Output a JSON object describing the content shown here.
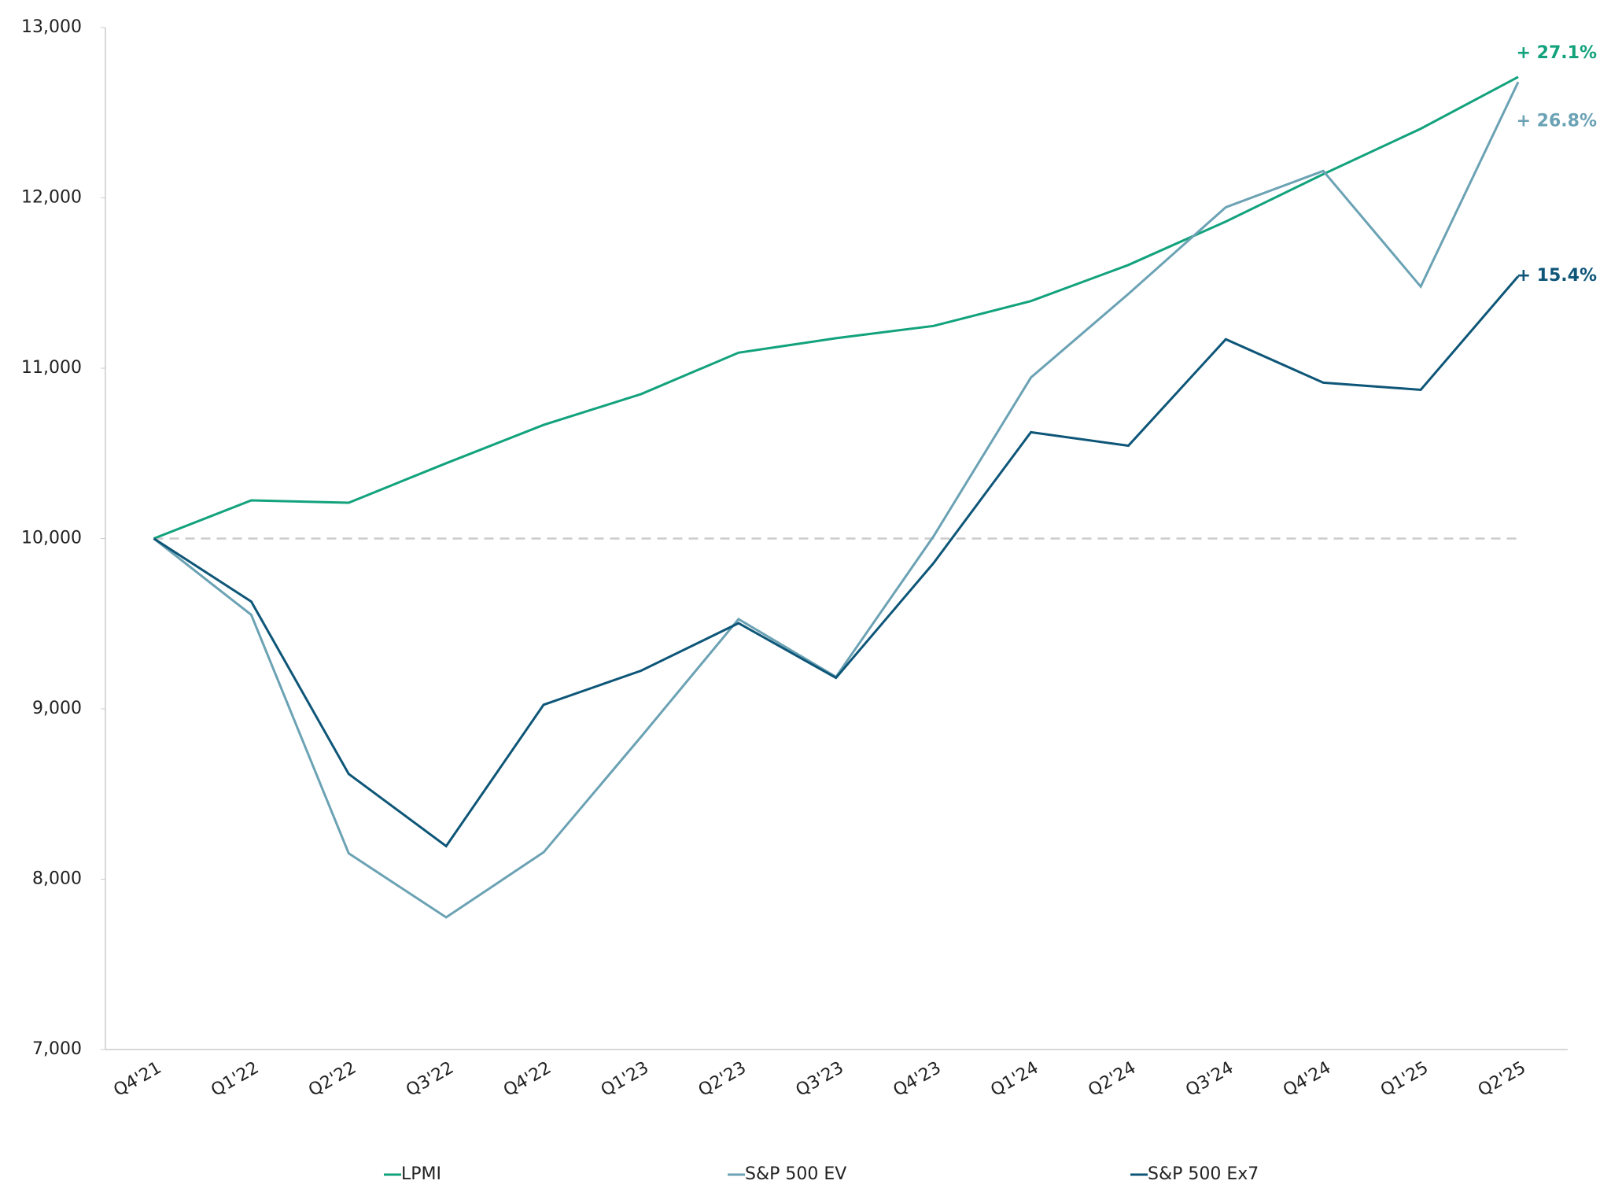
{
  "chart_data": {
    "type": "line",
    "categories": [
      "Q4'21",
      "Q1'22",
      "Q2'22",
      "Q3'22",
      "Q4'22",
      "Q1'23",
      "Q2'23",
      "Q3'23",
      "Q4'23",
      "Q1'24",
      "Q2'24",
      "Q3'24",
      "Q4'24",
      "Q1'25",
      "Q2'25"
    ],
    "series": [
      {
        "name": "LPMI",
        "color": "#12a27c",
        "values": [
          10000,
          10224,
          10210,
          10442,
          10667,
          10848,
          11091,
          11176,
          11248,
          11394,
          11606,
          11861,
          12139,
          12406,
          12710
        ]
      },
      {
        "name": "S&P 500 EV",
        "color": "#6ba2b4",
        "values": [
          10000,
          9552,
          8152,
          7776,
          8158,
          8836,
          9527,
          9188,
          10012,
          10945,
          11436,
          11945,
          12158,
          11479,
          12680
        ]
      },
      {
        "name": "S&P 500 Ex7",
        "color": "#0e5678",
        "values": [
          10000,
          9630,
          8618,
          8194,
          9024,
          9224,
          9503,
          9182,
          9855,
          10624,
          10545,
          11170,
          10915,
          10873,
          11540
        ]
      }
    ],
    "end_labels": [
      "+ 27.1%",
      "+ 26.8%",
      "+ 15.4%"
    ],
    "reference_line": 10000,
    "ylim": [
      7000,
      13000
    ],
    "yticks": [
      {
        "value": 7000,
        "label": "7,000"
      },
      {
        "value": 8000,
        "label": "8,000"
      },
      {
        "value": 9000,
        "label": "9,000"
      },
      {
        "value": 10000,
        "label": "10,000"
      },
      {
        "value": 11000,
        "label": "11,000"
      },
      {
        "value": 12000,
        "label": "12,000"
      },
      {
        "value": 13000,
        "label": "13,000"
      }
    ],
    "legend": "bottom"
  }
}
